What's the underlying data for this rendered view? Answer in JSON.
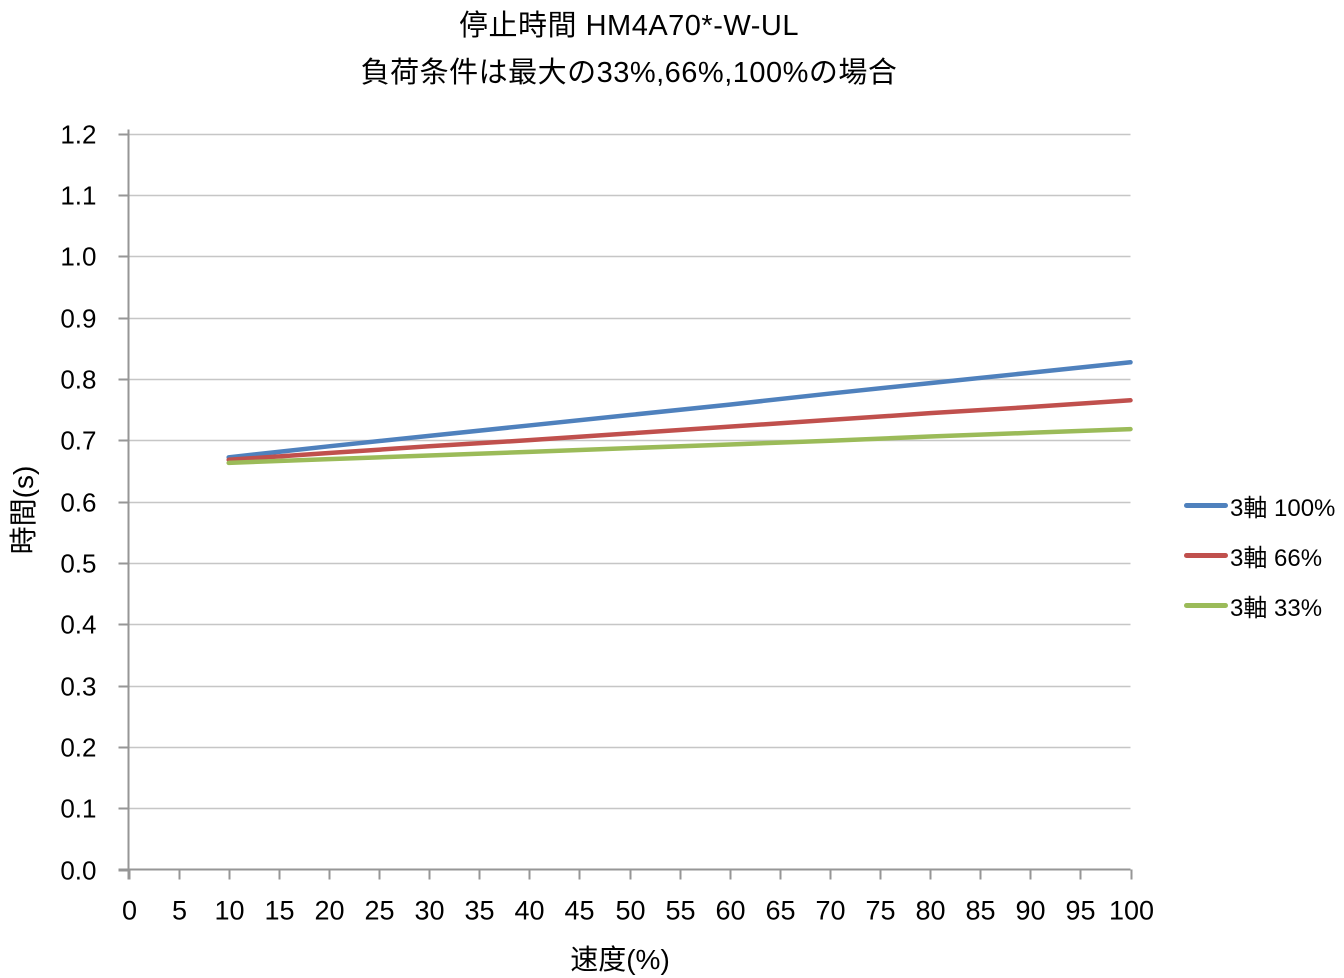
{
  "chart_data": {
    "type": "line",
    "title": "停止時間 HM4A70*-W-UL",
    "subtitle": "負荷条件は最大の33%,66%,100%の場合",
    "xlabel": "速度(%)",
    "ylabel": "時間(s)",
    "xlim": [
      0,
      100
    ],
    "ylim": [
      0.0,
      1.2
    ],
    "grid": "horizontal",
    "legend_position": "right",
    "x_ticks": [
      "0",
      "5",
      "10",
      "15",
      "20",
      "25",
      "30",
      "35",
      "40",
      "45",
      "50",
      "55",
      "60",
      "65",
      "70",
      "75",
      "80",
      "85",
      "90",
      "95",
      "100"
    ],
    "y_ticks": [
      "0.0",
      "0.1",
      "0.2",
      "0.3",
      "0.4",
      "0.5",
      "0.6",
      "0.7",
      "0.8",
      "0.9",
      "1.0",
      "1.1",
      "1.2"
    ],
    "x": [
      10,
      20,
      30,
      40,
      50,
      60,
      70,
      80,
      90,
      100
    ],
    "series": [
      {
        "name": "3軸 100%",
        "color": "#4F81BD",
        "values": [
          0.672,
          0.69,
          0.707,
          0.724,
          0.741,
          0.758,
          0.776,
          0.793,
          0.81,
          0.827
        ]
      },
      {
        "name": "3軸 66%",
        "color": "#C0504D",
        "values": [
          0.668,
          0.679,
          0.69,
          0.7,
          0.711,
          0.722,
          0.733,
          0.744,
          0.754,
          0.765
        ]
      },
      {
        "name": "3軸 33%",
        "color": "#9BBB59",
        "values": [
          0.663,
          0.669,
          0.675,
          0.681,
          0.687,
          0.693,
          0.699,
          0.706,
          0.712,
          0.718
        ]
      }
    ]
  },
  "colors": {
    "axis": "#969696",
    "grid": "#C6C6C6",
    "text": "#000000",
    "background": "#FFFFFF"
  }
}
